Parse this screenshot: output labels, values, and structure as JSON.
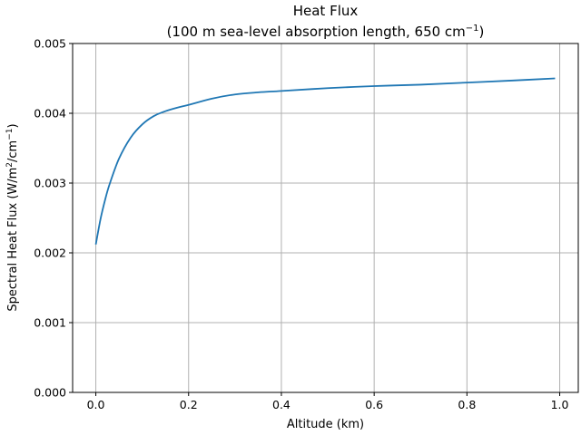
{
  "chart_data": {
    "type": "line",
    "title_line1": "Heat Flux",
    "title_line2_pre": "(100 m sea-level absorption length, 650 cm",
    "title_line2_sup": "−1",
    "title_line2_post": ")",
    "xlabel": "Altitude (km)",
    "ylabel_pre": "Spectral Heat Flux (W/m",
    "ylabel_sup1": "2",
    "ylabel_mid": "/cm",
    "ylabel_sup2": "−1",
    "ylabel_post": ")",
    "xlim": [
      -0.05,
      1.04
    ],
    "ylim": [
      0,
      0.005
    ],
    "xticks": [
      0.0,
      0.2,
      0.4,
      0.6,
      0.8,
      1.0
    ],
    "xtick_labels": [
      "0.0",
      "0.2",
      "0.4",
      "0.6",
      "0.8",
      "1.0"
    ],
    "yticks": [
      0.0,
      0.001,
      0.002,
      0.003,
      0.004,
      0.005
    ],
    "ytick_labels": [
      "0.000",
      "0.001",
      "0.002",
      "0.003",
      "0.004",
      "0.005"
    ],
    "grid": true,
    "series": [
      {
        "color": "#1f77b4",
        "x": [
          0.0,
          0.01,
          0.02,
          0.03,
          0.05,
          0.075,
          0.1,
          0.125,
          0.15,
          0.175,
          0.2,
          0.25,
          0.3,
          0.35,
          0.4,
          0.5,
          0.6,
          0.7,
          0.8,
          0.9,
          0.99
        ],
        "y": [
          0.00212,
          0.00248,
          0.00276,
          0.00299,
          0.00335,
          0.00365,
          0.00384,
          0.00396,
          0.00403,
          0.00408,
          0.00412,
          0.00421,
          0.00427,
          0.0043,
          0.00432,
          0.00436,
          0.00439,
          0.00441,
          0.00444,
          0.00447,
          0.0045
        ]
      }
    ]
  }
}
